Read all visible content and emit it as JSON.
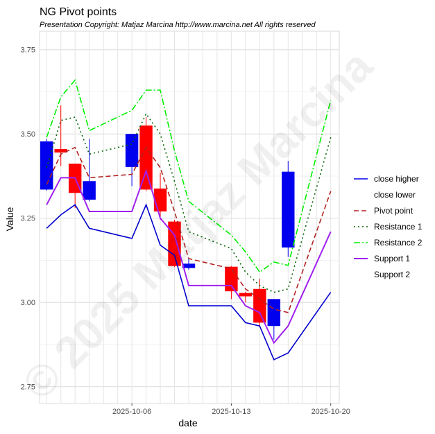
{
  "chart_data": {
    "type": "candlestick",
    "title": "NG  Pivot points",
    "subtitle": "Presentation Copyright: Matjaz Marcina http://www.marcina.net All rights reserved",
    "watermark": "© 2025 Matjaz Marcina",
    "xlabel": "date",
    "ylabel": "Value",
    "ylim": [
      2.7,
      3.805
    ],
    "y_ticks": [
      "2.75",
      "3.00",
      "3.25",
      "3.50",
      "3.75"
    ],
    "x_ticks": [
      {
        "date": "2025-10-06",
        "label": "2025-10-06"
      },
      {
        "date": "2025-10-13",
        "label": "2025-10-13"
      },
      {
        "date": "2025-10-20",
        "label": "2025-10-20"
      }
    ],
    "grid": true,
    "legend_position": "right",
    "colors": {
      "close_higher": "#0000ee",
      "close_lower": "#ff0000",
      "pivot": "#b22222",
      "resistance1": "#006400",
      "resistance2": "#00ee00",
      "support1": "#a020f0",
      "support2": "#0000cd"
    },
    "legend": [
      {
        "key": "close_higher",
        "label": "close higher",
        "style": "solid"
      },
      {
        "key": "close_lower",
        "label": "close lower",
        "style": "none"
      },
      {
        "key": "pivot",
        "label": "Pivot point",
        "style": "dashed"
      },
      {
        "key": "resistance1",
        "label": "Resistance 1",
        "style": "dotted"
      },
      {
        "key": "resistance2",
        "label": "Resistance 2",
        "style": "dashdot"
      },
      {
        "key": "support1",
        "label": "Support 1",
        "style": "solid"
      },
      {
        "key": "support2",
        "label": "Support 2",
        "style": "none"
      }
    ],
    "dates": [
      "2025-09-30",
      "2025-10-01",
      "2025-10-02",
      "2025-10-03",
      "2025-10-06",
      "2025-10-07",
      "2025-10-08",
      "2025-10-09",
      "2025-10-10",
      "2025-10-13",
      "2025-10-14",
      "2025-10-15",
      "2025-10-16",
      "2025-10-17",
      "2025-10-20"
    ],
    "open": [
      3.335,
      3.455,
      3.412,
      3.305,
      3.402,
      3.525,
      3.338,
      3.24,
      3.102,
      3.106,
      3.028,
      3.04,
      2.93,
      3.163,
      null
    ],
    "close": [
      3.478,
      3.445,
      3.325,
      3.36,
      3.5,
      3.335,
      3.27,
      3.108,
      3.115,
      3.033,
      3.018,
      2.94,
      3.01,
      3.388,
      null
    ],
    "high": [
      3.485,
      3.585,
      3.412,
      3.485,
      3.5,
      3.55,
      3.385,
      3.245,
      3.132,
      3.108,
      3.032,
      3.07,
      3.01,
      3.42,
      null
    ],
    "low": [
      3.332,
      3.405,
      3.28,
      3.3,
      3.345,
      3.33,
      3.245,
      3.105,
      3.097,
      3.01,
      3.0,
      2.93,
      2.89,
      3.135,
      null
    ],
    "series": [
      {
        "key": "pivot",
        "name": "Pivot point",
        "values": [
          3.35,
          3.44,
          3.46,
          3.37,
          3.38,
          3.46,
          3.4,
          3.27,
          3.13,
          3.1,
          3.04,
          3.01,
          2.98,
          2.97,
          3.33
        ]
      },
      {
        "key": "resistance1",
        "name": "Resistance 1",
        "values": [
          3.4,
          3.54,
          3.55,
          3.44,
          3.47,
          3.56,
          3.5,
          3.36,
          3.21,
          3.16,
          3.09,
          3.05,
          3.03,
          3.04,
          3.49
        ]
      },
      {
        "key": "resistance2",
        "name": "Resistance 2",
        "values": [
          3.49,
          3.61,
          3.66,
          3.51,
          3.57,
          3.63,
          3.63,
          3.45,
          3.3,
          3.2,
          3.15,
          3.09,
          3.12,
          3.11,
          3.6
        ]
      },
      {
        "key": "support1",
        "name": "Support 1",
        "values": [
          3.29,
          3.37,
          3.37,
          3.27,
          3.27,
          3.39,
          3.25,
          3.2,
          3.05,
          3.05,
          2.99,
          2.97,
          2.88,
          2.93,
          3.21
        ]
      },
      {
        "key": "support2",
        "name": "Support 2",
        "values": [
          3.22,
          3.26,
          3.29,
          3.22,
          3.19,
          3.29,
          3.17,
          3.14,
          2.99,
          2.99,
          2.94,
          2.93,
          2.83,
          2.85,
          3.03
        ]
      }
    ]
  }
}
